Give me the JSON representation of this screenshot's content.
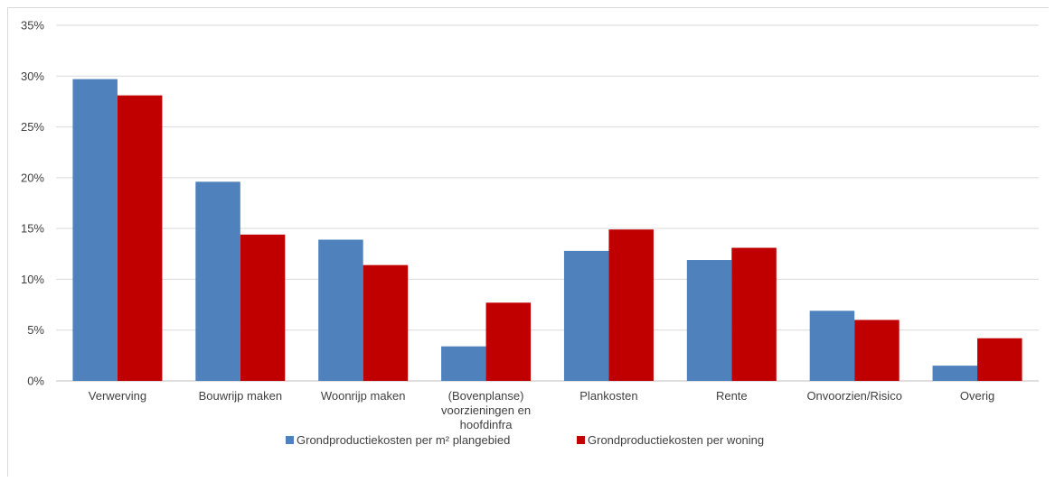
{
  "chart_data": {
    "type": "bar",
    "categories": [
      [
        "Verwerving"
      ],
      [
        "Bouwrijp maken"
      ],
      [
        "Woonrijp maken"
      ],
      [
        "(Bovenplanse)",
        "voorzieningen en",
        "hoofdinfra"
      ],
      [
        "Plankosten"
      ],
      [
        "Rente"
      ],
      [
        "Onvoorzien/Risico"
      ],
      [
        "Overig"
      ]
    ],
    "series": [
      {
        "name": "Grondproductiekosten per m² plangebied",
        "color": "#4f81bd",
        "values": [
          29.7,
          19.6,
          13.9,
          3.4,
          12.8,
          11.9,
          6.9,
          1.5
        ]
      },
      {
        "name": "Grondproductiekosten per woning",
        "color": "#c00000",
        "values": [
          28.1,
          14.4,
          11.4,
          7.7,
          14.9,
          13.1,
          6.0,
          4.2
        ]
      }
    ],
    "ylim": [
      0,
      35
    ],
    "yticks": [
      "0%",
      "5%",
      "10%",
      "15%",
      "20%",
      "25%",
      "30%",
      "35%"
    ],
    "grid": true,
    "legend": "bottom",
    "title": "",
    "xlabel": "",
    "ylabel": ""
  }
}
